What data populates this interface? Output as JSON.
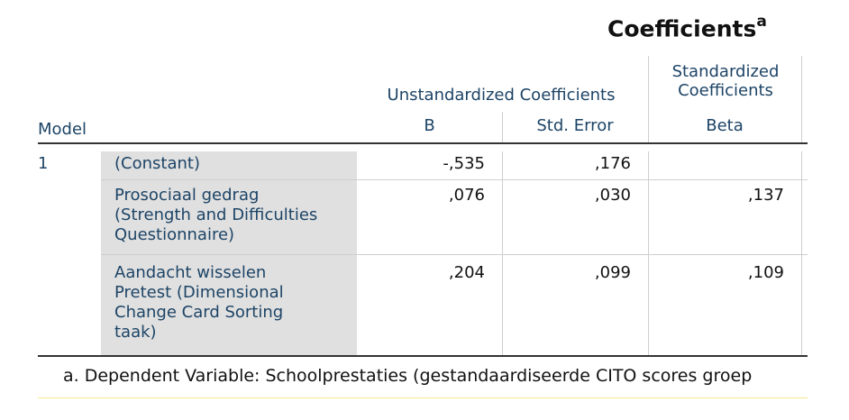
{
  "table": {
    "title": "Coefficients",
    "title_superscript": "a",
    "headers": {
      "model": "Model",
      "unstandardized_group": "Unstandardized Coefficients",
      "standardized_group_line1": "Standardized",
      "standardized_group_line2": "Coefficients",
      "b": "B",
      "std_error": "Std. Error",
      "beta": "Beta"
    },
    "model_number": "1",
    "rows": [
      {
        "label_lines": [
          "(Constant)"
        ],
        "b": "-,535",
        "std_error": ",176",
        "beta": ""
      },
      {
        "label_lines": [
          "Prosociaal gedrag",
          "(Strength and Difficulties",
          "Questionnaire)"
        ],
        "b": ",076",
        "std_error": ",030",
        "beta": ",137"
      },
      {
        "label_lines": [
          "Aandacht wisselen",
          "Pretest (Dimensional",
          "Change Card Sorting",
          "taak)"
        ],
        "b": ",204",
        "std_error": ",099",
        "beta": ",109"
      }
    ],
    "footnote": "a. Dependent Variable: Schoolprestaties (gestandaardiseerde CITO scores groep"
  }
}
